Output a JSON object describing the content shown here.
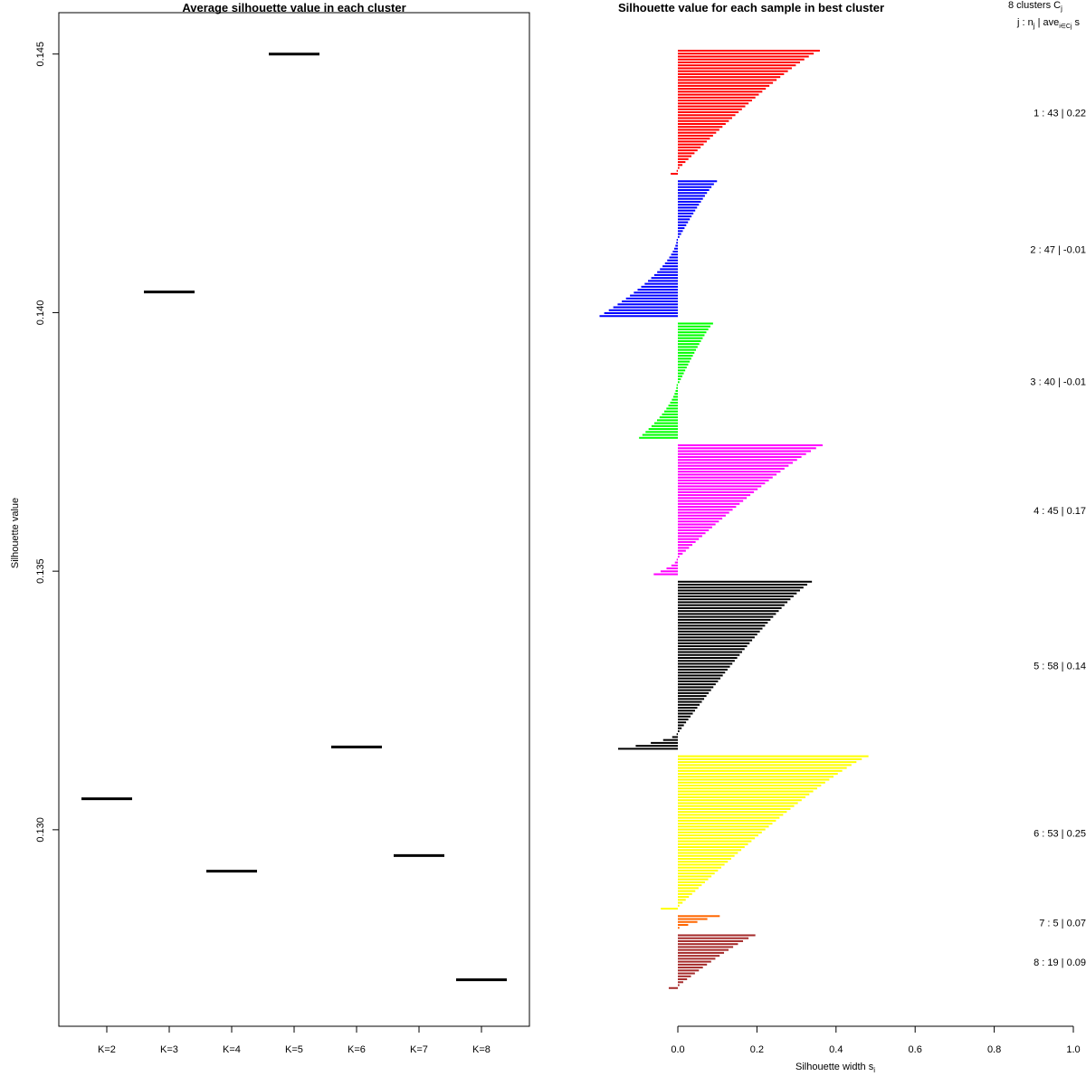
{
  "chart_data": [
    {
      "type": "line",
      "title": "Average silhouette value in each cluster",
      "xlabel": "",
      "ylabel": "Silhouette value",
      "categories": [
        "K=2",
        "K=3",
        "K=4",
        "K=5",
        "K=6",
        "K=7",
        "K=8"
      ],
      "values": [
        0.1306,
        0.1404,
        0.1292,
        0.145,
        0.1316,
        0.1295,
        0.1271
      ],
      "ylim": [
        0.1262,
        0.1458
      ],
      "yticks": [
        "0.130",
        "0.135",
        "0.140",
        "0.145"
      ],
      "ytick_values": [
        0.13,
        0.135,
        0.14,
        0.145
      ]
    },
    {
      "type": "bar",
      "title": "Silhouette value for each sample in best cluster",
      "xlabel": "Silhouette width s",
      "xlabel_sub": "i",
      "xlim": [
        0.0,
        1.0
      ],
      "xticks": [
        "0.0",
        "0.2",
        "0.4",
        "0.6",
        "0.8",
        "1.0"
      ],
      "xtick_values": [
        0.0,
        0.2,
        0.4,
        0.6,
        0.8,
        1.0
      ],
      "header_line1": "8  clusters  C",
      "header_line1_sub": "j",
      "header_line2": "j :  n",
      "header_line2_sub": "j",
      "header_line2_rest": " | ave",
      "header_line2_sub2": "i∈Cj",
      "header_line2_tail": "  s",
      "clusters": [
        {
          "label": "1 :  43  |  0.22",
          "color": "#ff0000",
          "n": 43,
          "max": 0.355,
          "min": -0.015,
          "neg": 2
        },
        {
          "label": "2 :  47  |  -0.01",
          "color": "#0000ff",
          "n": 47,
          "max": 0.095,
          "min": -0.195,
          "neg": 27
        },
        {
          "label": "3 :  40  |  -0.01",
          "color": "#00ff00",
          "n": 40,
          "max": 0.085,
          "min": -0.095,
          "neg": 19
        },
        {
          "label": "4 :  45  |  0.17",
          "color": "#ff00ff",
          "n": 45,
          "max": 0.362,
          "min": -0.058,
          "neg": 6
        },
        {
          "label": "5 :  58  |  0.14",
          "color": "#000000",
          "n": 58,
          "max": 0.335,
          "min": -0.148,
          "neg": 6
        },
        {
          "label": "6 :  53  |  0.25",
          "color": "#ffff00",
          "n": 53,
          "max": 0.478,
          "min": -0.04,
          "neg": 1
        },
        {
          "label": "7 :  5  |  0.07",
          "color": "#ff6600",
          "n": 5,
          "max": 0.102,
          "min": 0.028,
          "neg": 0
        },
        {
          "label": "8 :  19  |  0.09",
          "color": "#a52a2a",
          "n": 19,
          "max": 0.192,
          "min": -0.02,
          "neg": 1
        }
      ]
    }
  ]
}
